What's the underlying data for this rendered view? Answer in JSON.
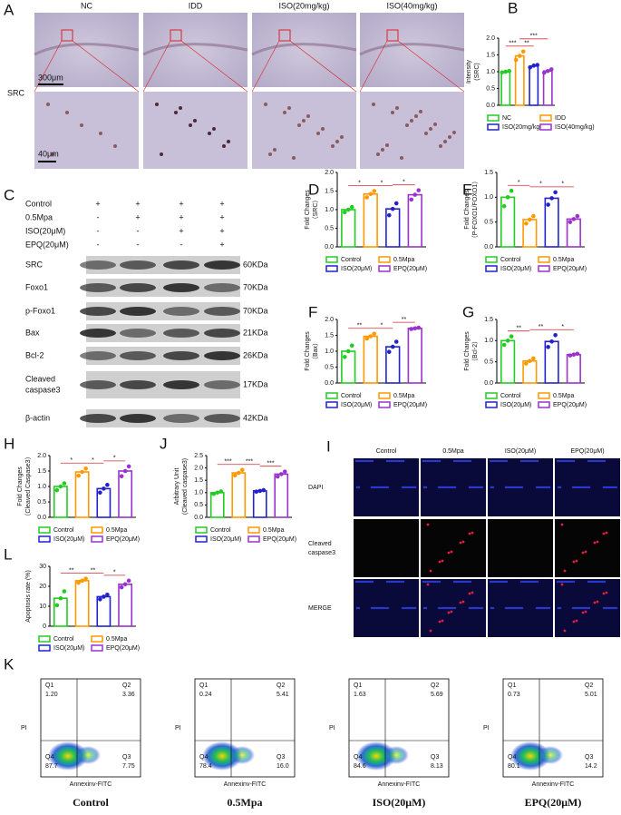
{
  "panel_A": {
    "label": "A",
    "columns": [
      "NC",
      "IDD",
      "ISO(20mg/kg)",
      "ISO(40mg/kg)"
    ],
    "row_label": "SRC",
    "scale_bars": [
      "300μm",
      "40μm"
    ]
  },
  "panel_C": {
    "label": "C",
    "treatments": [
      {
        "name": "Control",
        "signs": [
          "+",
          "+",
          "+",
          "+"
        ]
      },
      {
        "name": "0.5Mpa",
        "signs": [
          "-",
          "+",
          "+",
          "+"
        ]
      },
      {
        "name": "ISO(20μM)",
        "signs": [
          "-",
          "-",
          "+",
          "+"
        ]
      },
      {
        "name": "EPQ(20μM)",
        "signs": [
          "-",
          "-",
          "-",
          "+"
        ]
      }
    ],
    "blots": [
      {
        "protein": [
          "SRC"
        ],
        "size": "60KDa"
      },
      {
        "protein": [
          "Foxo1"
        ],
        "size": "70KDa"
      },
      {
        "protein": [
          "p-Foxo1"
        ],
        "size": "70KDa"
      },
      {
        "protein": [
          "Bax"
        ],
        "size": "21KDa"
      },
      {
        "protein": [
          "Bcl-2"
        ],
        "size": "26KDa"
      },
      {
        "protein": [
          "Cleaved",
          "caspase3"
        ],
        "size": "17KDa"
      },
      {
        "protein": [
          "β-actin"
        ],
        "size": "42KDa"
      }
    ]
  },
  "panel_I": {
    "label": "I",
    "columns": [
      "Control",
      "0.5Mpa",
      "ISO(20μM)",
      "EPQ(20μM)"
    ],
    "rows": [
      [
        "DAPI"
      ],
      [
        "Cleaved",
        "caspase3"
      ],
      [
        "MERGE"
      ]
    ]
  },
  "panel_K": {
    "label": "K",
    "x_label": "Annexinv-FITC",
    "y_label": "PI",
    "plots": [
      {
        "title": "Control",
        "quadrants": [
          {
            "name": "Q1",
            "value": "1.20"
          },
          {
            "name": "Q2",
            "value": "3.36"
          },
          {
            "name": "Q3",
            "value": "7.75"
          },
          {
            "name": "Q4",
            "value": "87.7"
          }
        ]
      },
      {
        "title": "0.5Mpa",
        "quadrants": [
          {
            "name": "Q1",
            "value": "0.24"
          },
          {
            "name": "Q2",
            "value": "5.41"
          },
          {
            "name": "Q3",
            "value": "16.0"
          },
          {
            "name": "Q4",
            "value": "78.4"
          }
        ]
      },
      {
        "title": "ISO(20μM)",
        "quadrants": [
          {
            "name": "Q1",
            "value": "1.63"
          },
          {
            "name": "Q2",
            "value": "5.69"
          },
          {
            "name": "Q3",
            "value": "8.13"
          },
          {
            "name": "Q4",
            "value": "84.6"
          }
        ]
      },
      {
        "title": "EPQ(20μM)",
        "quadrants": [
          {
            "name": "Q1",
            "value": "0.73"
          },
          {
            "name": "Q2",
            "value": "5.01"
          },
          {
            "name": "Q3",
            "value": "14.2"
          },
          {
            "name": "Q4",
            "value": "80.1"
          }
        ]
      }
    ]
  },
  "chart_data": [
    {
      "panel": "B",
      "type": "bar",
      "ylabel": [
        "Intensity",
        "(SRC)"
      ],
      "categories": [
        "NC",
        "IDD",
        "ISO(20mg/kg)",
        "ISO(40mg/kg)"
      ],
      "colors": [
        "#22cc22",
        "#ff9900",
        "#2222cc",
        "#9933cc"
      ],
      "values": [
        1.0,
        1.47,
        1.17,
        1.02
      ],
      "points": [
        [
          0.98,
          1.0,
          1.02
        ],
        [
          1.35,
          1.47,
          1.6
        ],
        [
          1.13,
          1.18,
          1.2
        ],
        [
          0.97,
          1.02,
          1.07
        ]
      ],
      "ylim": [
        0,
        2
      ],
      "yticks": [
        {
          "value": 0,
          "label": "0.0"
        },
        0.5,
        {
          "value": 1,
          "label": "1.0"
        },
        1.5,
        {
          "value": 2,
          "label": "2.0"
        }
      ],
      "significance": [
        {
          "label": "***",
          "between": [
            "NC",
            "IDD"
          ]
        },
        {
          "label": "**",
          "between": [
            "IDD",
            "ISO(20mg/kg)"
          ]
        },
        {
          "label": "***",
          "between": [
            "IDD",
            "ISO(40mg/kg)"
          ]
        }
      ]
    },
    {
      "panel": "D",
      "type": "bar",
      "ylabel": [
        "Fold Changes",
        "（SRC）"
      ],
      "categories": [
        "Control",
        "0.5Mpa",
        "ISO(20μM)",
        "EPQ(20μM)"
      ],
      "colors": [
        "#22cc22",
        "#ff9900",
        "#2222cc",
        "#9933cc"
      ],
      "values": [
        1.0,
        1.42,
        1.02,
        1.4
      ],
      "points": [
        [
          0.93,
          1.0,
          1.07
        ],
        [
          1.33,
          1.42,
          1.5
        ],
        [
          0.85,
          1.02,
          1.17
        ],
        [
          1.27,
          1.4,
          1.52
        ]
      ],
      "ylim": [
        0,
        2
      ],
      "yticks": [
        {
          "value": 0,
          "label": "0.0"
        },
        0.5,
        {
          "value": 1,
          "label": "1.0"
        },
        1.5,
        {
          "value": 2,
          "label": "2.0"
        }
      ],
      "significance": [
        {
          "label": "*",
          "between": [
            "Control",
            "0.5Mpa"
          ]
        },
        {
          "label": "*",
          "between": [
            "0.5Mpa",
            "ISO(20μM)"
          ]
        },
        {
          "label": "*",
          "between": [
            "ISO(20μM)",
            "EPQ(20μM)"
          ]
        }
      ]
    },
    {
      "panel": "E",
      "type": "bar",
      "ylabel": [
        "Fold Changes",
        "（P-FOXO1/FOXO1）"
      ],
      "categories": [
        "Control",
        "0.5Mpa",
        "ISO(20μM)",
        "EPQ(20μM)"
      ],
      "colors": [
        "#22cc22",
        "#ff9900",
        "#2222cc",
        "#9933cc"
      ],
      "values": [
        1.0,
        0.55,
        0.98,
        0.56
      ],
      "points": [
        [
          0.82,
          1.0,
          1.13
        ],
        [
          0.47,
          0.55,
          0.62
        ],
        [
          0.85,
          0.98,
          1.1
        ],
        [
          0.5,
          0.56,
          0.62
        ]
      ],
      "ylim": [
        0,
        1.5
      ],
      "yticks": [
        {
          "value": 0,
          "label": "0.0"
        },
        0.5,
        {
          "value": 1,
          "label": "1.0"
        },
        1.5
      ],
      "significance": [
        {
          "label": "*",
          "between": [
            "Control",
            "0.5Mpa"
          ]
        },
        {
          "label": "*",
          "between": [
            "0.5Mpa",
            "ISO(20μM)"
          ]
        },
        {
          "label": "*",
          "between": [
            "ISO(20μM)",
            "EPQ(20μM)"
          ]
        }
      ]
    },
    {
      "panel": "F",
      "type": "bar",
      "ylabel": [
        "Fold Changes",
        "（Bax）"
      ],
      "categories": [
        "Control",
        "0.5Mpa",
        "ISO(20μM)",
        "EPQ(20μM)"
      ],
      "colors": [
        "#22cc22",
        "#ff9900",
        "#2222cc",
        "#9933cc"
      ],
      "values": [
        1.0,
        1.47,
        1.14,
        1.72
      ],
      "points": [
        [
          0.82,
          1.0,
          1.18
        ],
        [
          1.4,
          1.47,
          1.55
        ],
        [
          0.98,
          1.14,
          1.3
        ],
        [
          1.7,
          1.72,
          1.74
        ]
      ],
      "ylim": [
        0,
        2
      ],
      "yticks": [
        {
          "value": 0,
          "label": "0.0"
        },
        0.5,
        {
          "value": 1,
          "label": "1.0"
        },
        1.5,
        {
          "value": 2,
          "label": "2.0"
        }
      ],
      "significance": [
        {
          "label": "**",
          "between": [
            "Control",
            "0.5Mpa"
          ]
        },
        {
          "label": "*",
          "between": [
            "0.5Mpa",
            "ISO(20μM)"
          ]
        },
        {
          "label": "**",
          "between": [
            "ISO(20μM)",
            "EPQ(20μM)"
          ]
        }
      ]
    },
    {
      "panel": "G",
      "type": "bar",
      "ylabel": [
        "Fold Changes",
        "（Bcl-2）"
      ],
      "categories": [
        "Control",
        "0.5Mpa",
        "ISO(20μM)",
        "EPQ(20μM)"
      ],
      "colors": [
        "#22cc22",
        "#ff9900",
        "#2222cc",
        "#9933cc"
      ],
      "values": [
        1.0,
        0.52,
        0.98,
        0.67
      ],
      "points": [
        [
          0.9,
          1.0,
          1.1
        ],
        [
          0.46,
          0.52,
          0.58
        ],
        [
          0.85,
          0.98,
          1.13
        ],
        [
          0.65,
          0.67,
          0.69
        ]
      ],
      "ylim": [
        0,
        1.5
      ],
      "yticks": [
        {
          "value": 0,
          "label": "0.0"
        },
        0.5,
        {
          "value": 1,
          "label": "1.0"
        },
        1.5
      ],
      "significance": [
        {
          "label": "**",
          "between": [
            "Control",
            "0.5Mpa"
          ]
        },
        {
          "label": "**",
          "between": [
            "0.5Mpa",
            "ISO(20μM)"
          ]
        },
        {
          "label": "*",
          "between": [
            "ISO(20μM)",
            "EPQ(20μM)"
          ]
        }
      ]
    },
    {
      "panel": "H",
      "type": "bar",
      "ylabel": [
        "Fold Changes",
        "（Cleaved Caspase3）"
      ],
      "categories": [
        "Control",
        "0.5Mpa",
        "ISO(20μM)",
        "EPQ(20μM)"
      ],
      "colors": [
        "#22cc22",
        "#ff9900",
        "#2222cc",
        "#9933cc"
      ],
      "values": [
        1.0,
        1.47,
        0.93,
        1.5
      ],
      "points": [
        [
          0.88,
          1.0,
          1.1
        ],
        [
          1.35,
          1.47,
          1.58
        ],
        [
          0.8,
          0.93,
          1.05
        ],
        [
          1.33,
          1.5,
          1.65
        ]
      ],
      "ylim": [
        0,
        2
      ],
      "yticks": [
        {
          "value": 0,
          "label": "0.0"
        },
        0.5,
        {
          "value": 1,
          "label": "1.0"
        },
        1.5,
        {
          "value": 2,
          "label": "2.0"
        }
      ],
      "significance": [
        {
          "label": "*",
          "between": [
            "Control",
            "0.5Mpa"
          ]
        },
        {
          "label": "*",
          "between": [
            "0.5Mpa",
            "ISO(20μM)"
          ]
        },
        {
          "label": "*",
          "between": [
            "ISO(20μM)",
            "EPQ(20μM)"
          ]
        }
      ]
    },
    {
      "panel": "J",
      "type": "bar",
      "ylabel": [
        "Arbitrary Unit",
        "(Cleaved caspase3)"
      ],
      "categories": [
        "Control",
        "0.5Mpa",
        "ISO(20μM)",
        "EPQ(20μM)"
      ],
      "colors": [
        "#22cc22",
        "#ff9900",
        "#2222cc",
        "#9933cc"
      ],
      "values": [
        1.0,
        1.8,
        1.07,
        1.75
      ],
      "points": [
        [
          0.95,
          1.0,
          1.05
        ],
        [
          1.7,
          1.8,
          1.92
        ],
        [
          1.04,
          1.07,
          1.1
        ],
        [
          1.65,
          1.75,
          1.85
        ]
      ],
      "ylim": [
        0,
        2.5
      ],
      "yticks": [
        {
          "value": 0,
          "label": "0.0"
        },
        0.5,
        {
          "value": 1,
          "label": "1.0"
        },
        1.5,
        {
          "value": 2,
          "label": "2.0"
        },
        2.5
      ],
      "significance": [
        {
          "label": "***",
          "between": [
            "Control",
            "0.5Mpa"
          ]
        },
        {
          "label": "***",
          "between": [
            "0.5Mpa",
            "ISO(20μM)"
          ]
        },
        {
          "label": "***",
          "between": [
            "ISO(20μM)",
            "EPQ(20μM)"
          ]
        }
      ]
    },
    {
      "panel": "L",
      "type": "bar",
      "ylabel": [
        "Apoptosis rate (%)"
      ],
      "categories": [
        "Control",
        "0.5Mpa",
        "ISO(20μM)",
        "EPQ(20μM)"
      ],
      "colors": [
        "#22cc22",
        "#ff9900",
        "#2222cc",
        "#9933cc"
      ],
      "values": [
        14,
        22.8,
        14.8,
        21
      ],
      "points": [
        [
          10.5,
          14,
          17.5
        ],
        [
          21.8,
          22.8,
          23.8
        ],
        [
          13.5,
          14.8,
          15.8
        ],
        [
          19.5,
          21,
          22.8
        ]
      ],
      "ylim": [
        0,
        30
      ],
      "yticks": [
        0,
        10,
        20,
        30
      ],
      "significance": [
        {
          "label": "**",
          "between": [
            "Control",
            "0.5Mpa"
          ]
        },
        {
          "label": "**",
          "between": [
            "0.5Mpa",
            "ISO(20μM)"
          ]
        },
        {
          "label": "*",
          "between": [
            "ISO(20μM)",
            "EPQ(20μM)"
          ]
        }
      ]
    }
  ]
}
